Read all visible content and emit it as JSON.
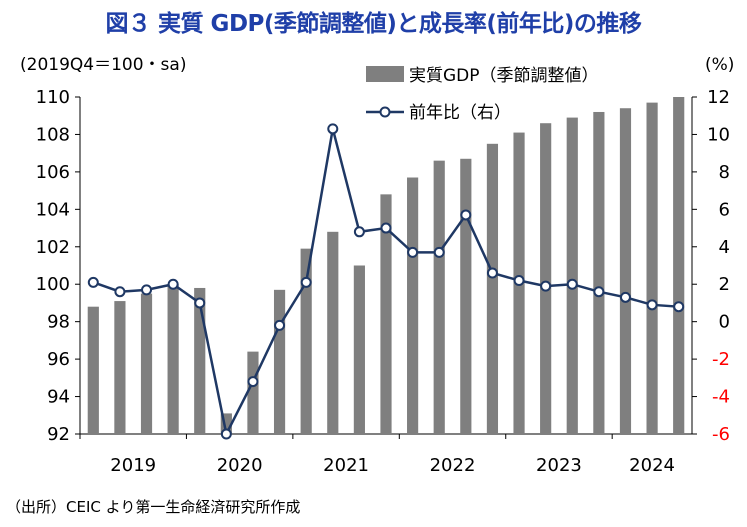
{
  "title": "図３ 実質 GDP(季節調整値)と成長率(前年比)の推移",
  "source": "（出所）CEIC より第一生命経済研究所作成",
  "chart_data": {
    "type": "bar+line",
    "left_axis_label": "(2019Q4＝100・sa)",
    "right_axis_label": "(%)",
    "left_ylim": [
      92,
      110
    ],
    "left_ticks": [
      92,
      94,
      96,
      98,
      100,
      102,
      104,
      106,
      108,
      110
    ],
    "right_ylim": [
      -6,
      12
    ],
    "right_ticks": [
      -6,
      -4,
      -2,
      0,
      2,
      4,
      6,
      8,
      10,
      12
    ],
    "x_tick_labels": [
      "2019",
      "2020",
      "2021",
      "2022",
      "2023",
      "2024"
    ],
    "categories": [
      "2019Q1",
      "2019Q2",
      "2019Q3",
      "2019Q4",
      "2020Q1",
      "2020Q2",
      "2020Q3",
      "2020Q4",
      "2021Q1",
      "2021Q2",
      "2021Q3",
      "2021Q4",
      "2022Q1",
      "2022Q2",
      "2022Q3",
      "2022Q4",
      "2023Q1",
      "2023Q2",
      "2023Q3",
      "2023Q4",
      "2024Q1",
      "2024Q2",
      "2024Q3"
    ],
    "series": [
      {
        "name": "実質GDP（季節調整値）",
        "type": "bar",
        "axis": "left",
        "color": "#7f7f7f",
        "values": [
          98.8,
          99.1,
          99.5,
          100.0,
          99.8,
          93.1,
          96.4,
          99.7,
          101.9,
          102.8,
          101.0,
          104.8,
          105.7,
          106.6,
          106.7,
          107.5,
          108.1,
          108.6,
          108.9,
          109.2,
          109.4,
          109.7,
          110.0
        ]
      },
      {
        "name": "前年比（右）",
        "type": "line",
        "axis": "right",
        "color": "#1f3864",
        "values": [
          2.1,
          1.6,
          1.7,
          2.0,
          1.0,
          -6.0,
          -3.2,
          -0.2,
          2.1,
          10.3,
          4.8,
          5.0,
          3.7,
          3.7,
          5.7,
          2.6,
          2.2,
          1.9,
          2.0,
          1.6,
          1.3,
          0.9,
          0.8
        ]
      }
    ],
    "legend_position": "top-right",
    "right_axis_negative_color": "#ff0000",
    "grid": false
  }
}
